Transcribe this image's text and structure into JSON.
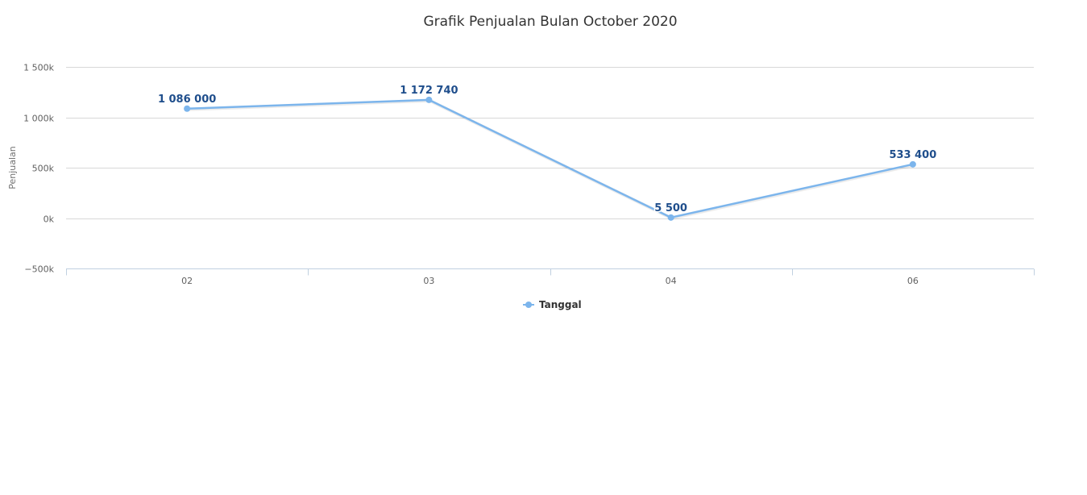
{
  "chart_data": {
    "type": "line",
    "title": "Grafik Penjualan Bulan October 2020",
    "xlabel": "",
    "ylabel": "Penjualan",
    "categories": [
      "02",
      "03",
      "04",
      "06"
    ],
    "series": [
      {
        "name": "Tanggal",
        "values": [
          1086000,
          1172740,
          5500,
          533400
        ],
        "labels": [
          "1 086 000",
          "1 172 740",
          "5 500",
          "533 400"
        ],
        "color": "#7cb5ec"
      }
    ],
    "ylim": [
      -500000,
      1500000
    ],
    "yticks": [
      1500000,
      1000000,
      500000,
      0,
      -500000
    ],
    "ytick_labels": [
      "1 500k",
      "1 000k",
      "500k",
      "0k",
      "−500k"
    ],
    "grid": true,
    "legend_position": "bottom-center",
    "colors": {
      "series": "#7cb5ec",
      "data_label": "#1f4e8c",
      "gridline": "#d8d8d8",
      "axis": "#c0d0e0"
    }
  }
}
